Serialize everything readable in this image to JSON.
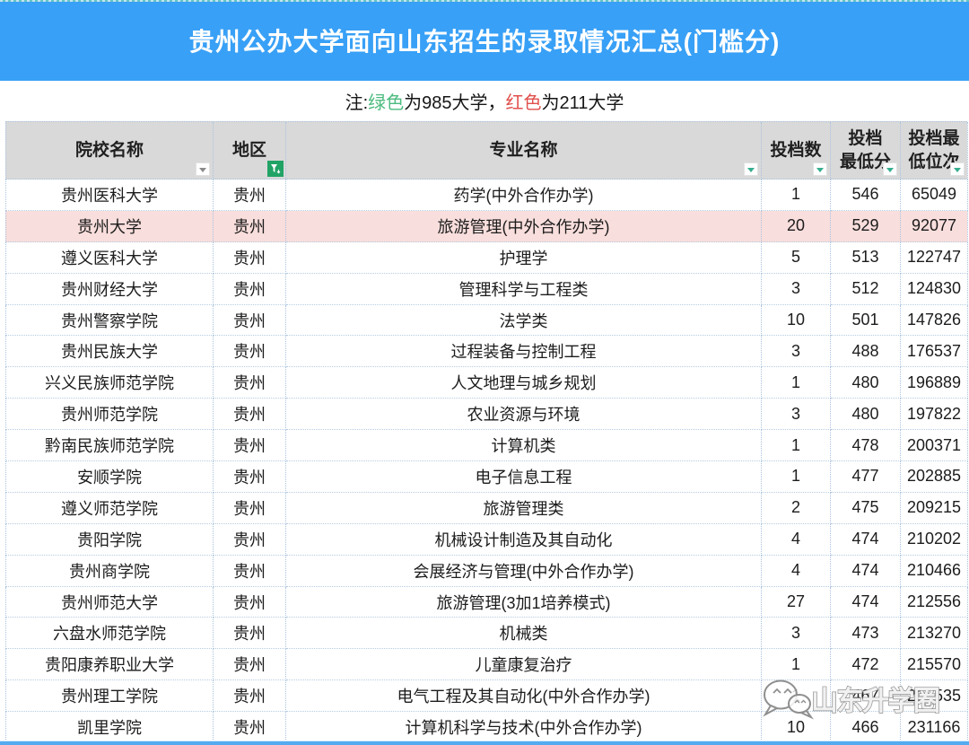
{
  "banner": {
    "title": "贵州公办大学面向山东招生的录取情况汇总(门槛分)",
    "bg_color": "#38A0F6",
    "text_color": "#FFFFFF"
  },
  "note": {
    "part1": "注: ",
    "green": "绿色",
    "part2": "为985大学，",
    "red": "红色",
    "part3": "为211大学",
    "green_color": "#4CBB7F",
    "red_color": "#E0504D"
  },
  "table": {
    "header_bg": "#D9D9D9",
    "highlight_bg": "#F8DEDC",
    "border_color": "#A9C3DE",
    "headers": [
      {
        "line1": "院校名称",
        "line2": "",
        "filter_icon": "dropdown-gray"
      },
      {
        "line1": "地区",
        "line2": "",
        "filter_icon": "funnel-active-green"
      },
      {
        "line1": "专业名称",
        "line2": "",
        "filter_icon": "dropdown-teal"
      },
      {
        "line1": "投档数",
        "line2": "",
        "filter_icon": "dropdown-teal"
      },
      {
        "line1": "投档",
        "line2": "最低分",
        "filter_icon": "dropdown-teal"
      },
      {
        "line1": "投档最",
        "line2": "低位次",
        "filter_icon": "dropdown-teal"
      }
    ],
    "rows": [
      {
        "school": "贵州医科大学",
        "region": "贵州",
        "major": "药学(中外合作办学)",
        "count": "1",
        "score": "546",
        "rank": "65049",
        "highlight": false
      },
      {
        "school": "贵州大学",
        "region": "贵州",
        "major": "旅游管理(中外合作办学)",
        "count": "20",
        "score": "529",
        "rank": "92077",
        "highlight": true
      },
      {
        "school": "遵义医科大学",
        "region": "贵州",
        "major": "护理学",
        "count": "5",
        "score": "513",
        "rank": "122747",
        "highlight": false
      },
      {
        "school": "贵州财经大学",
        "region": "贵州",
        "major": "管理科学与工程类",
        "count": "3",
        "score": "512",
        "rank": "124830",
        "highlight": false
      },
      {
        "school": "贵州警察学院",
        "region": "贵州",
        "major": "法学类",
        "count": "10",
        "score": "501",
        "rank": "147826",
        "highlight": false
      },
      {
        "school": "贵州民族大学",
        "region": "贵州",
        "major": "过程装备与控制工程",
        "count": "3",
        "score": "488",
        "rank": "176537",
        "highlight": false
      },
      {
        "school": "兴义民族师范学院",
        "region": "贵州",
        "major": "人文地理与城乡规划",
        "count": "1",
        "score": "480",
        "rank": "196889",
        "highlight": false
      },
      {
        "school": "贵州师范学院",
        "region": "贵州",
        "major": "农业资源与环境",
        "count": "3",
        "score": "480",
        "rank": "197822",
        "highlight": false
      },
      {
        "school": "黔南民族师范学院",
        "region": "贵州",
        "major": "计算机类",
        "count": "1",
        "score": "478",
        "rank": "200371",
        "highlight": false
      },
      {
        "school": "安顺学院",
        "region": "贵州",
        "major": "电子信息工程",
        "count": "1",
        "score": "477",
        "rank": "202885",
        "highlight": false
      },
      {
        "school": "遵义师范学院",
        "region": "贵州",
        "major": "旅游管理类",
        "count": "2",
        "score": "475",
        "rank": "209215",
        "highlight": false
      },
      {
        "school": "贵阳学院",
        "region": "贵州",
        "major": "机械设计制造及其自动化",
        "count": "4",
        "score": "474",
        "rank": "210202",
        "highlight": false
      },
      {
        "school": "贵州商学院",
        "region": "贵州",
        "major": "会展经济与管理(中外合作办学)",
        "count": "4",
        "score": "474",
        "rank": "210466",
        "highlight": false
      },
      {
        "school": "贵州师范大学",
        "region": "贵州",
        "major": "旅游管理(3加1培养模式)",
        "count": "27",
        "score": "474",
        "rank": "212556",
        "highlight": false
      },
      {
        "school": "六盘水师范学院",
        "region": "贵州",
        "major": "机械类",
        "count": "3",
        "score": "473",
        "rank": "213270",
        "highlight": false
      },
      {
        "school": "贵阳康养职业大学",
        "region": "贵州",
        "major": "儿童康复治疗",
        "count": "1",
        "score": "472",
        "rank": "215570",
        "highlight": false
      },
      {
        "school": "贵州理工学院",
        "region": "贵州",
        "major": "电气工程及其自动化(中外合作办学)",
        "count": "1",
        "score": "467",
        "rank": "218535",
        "highlight": false
      },
      {
        "school": "凯里学院",
        "region": "贵州",
        "major": "计算机科学与技术(中外合作办学)",
        "count": "10",
        "score": "466",
        "rank": "231166",
        "highlight": false
      }
    ]
  },
  "watermark": {
    "text": "山东升学圈"
  }
}
